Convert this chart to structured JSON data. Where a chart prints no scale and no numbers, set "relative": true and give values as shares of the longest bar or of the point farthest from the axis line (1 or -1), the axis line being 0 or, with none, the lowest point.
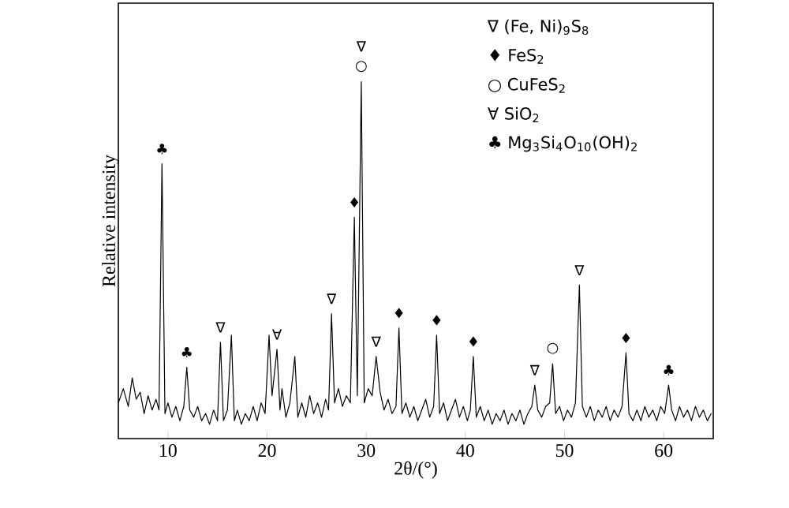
{
  "chart_data": {
    "type": "line",
    "relative": true,
    "xlabel": "2θ/(°)",
    "ylabel": "Relative intensity",
    "xlim": [
      5,
      65
    ],
    "xticks": [
      10,
      20,
      30,
      40,
      50,
      60
    ],
    "series": [
      {
        "color": "#000000",
        "x": [
          5.0,
          5.5,
          6.0,
          6.4,
          6.8,
          7.2,
          7.6,
          8.0,
          8.4,
          8.8,
          9.1,
          9.4,
          9.7,
          10.0,
          10.4,
          10.8,
          11.2,
          11.6,
          11.9,
          12.2,
          12.6,
          13.0,
          13.4,
          13.8,
          14.2,
          14.6,
          15.0,
          15.3,
          15.6,
          16.0,
          16.4,
          16.7,
          17.0,
          17.4,
          17.8,
          18.2,
          18.6,
          19.0,
          19.4,
          19.8,
          20.2,
          20.5,
          21.0,
          21.3,
          21.5,
          21.9,
          22.3,
          22.8,
          23.1,
          23.5,
          23.9,
          24.3,
          24.7,
          25.1,
          25.5,
          25.9,
          26.2,
          26.5,
          26.8,
          27.2,
          27.6,
          28.0,
          28.4,
          28.8,
          29.1,
          29.5,
          29.8,
          30.2,
          30.6,
          31.0,
          31.4,
          31.8,
          32.2,
          32.6,
          33.0,
          33.3,
          33.6,
          34.0,
          34.4,
          34.8,
          35.2,
          35.6,
          36.0,
          36.4,
          36.8,
          37.1,
          37.4,
          37.8,
          38.2,
          38.6,
          39.0,
          39.4,
          39.8,
          40.2,
          40.5,
          40.8,
          41.1,
          41.5,
          41.9,
          42.3,
          42.7,
          43.1,
          43.5,
          43.9,
          44.3,
          44.7,
          45.1,
          45.5,
          45.9,
          46.3,
          46.7,
          47.0,
          47.3,
          47.7,
          48.1,
          48.5,
          48.8,
          49.1,
          49.5,
          49.9,
          50.3,
          50.7,
          51.1,
          51.5,
          51.8,
          52.2,
          52.6,
          53.0,
          53.4,
          53.8,
          54.2,
          54.6,
          55.0,
          55.4,
          55.8,
          56.2,
          56.5,
          56.9,
          57.3,
          57.7,
          58.1,
          58.5,
          58.9,
          59.3,
          59.7,
          60.1,
          60.5,
          60.8,
          61.2,
          61.6,
          62.0,
          62.4,
          62.8,
          63.2,
          63.6,
          64.0,
          64.4,
          64.8
        ],
        "values": [
          0.1,
          0.14,
          0.09,
          0.17,
          0.11,
          0.13,
          0.07,
          0.12,
          0.08,
          0.11,
          0.08,
          0.77,
          0.07,
          0.1,
          0.06,
          0.09,
          0.05,
          0.09,
          0.2,
          0.08,
          0.06,
          0.09,
          0.05,
          0.07,
          0.04,
          0.08,
          0.05,
          0.27,
          0.05,
          0.08,
          0.29,
          0.05,
          0.08,
          0.04,
          0.07,
          0.05,
          0.09,
          0.05,
          0.1,
          0.07,
          0.29,
          0.12,
          0.25,
          0.08,
          0.14,
          0.06,
          0.1,
          0.23,
          0.06,
          0.1,
          0.06,
          0.12,
          0.07,
          0.1,
          0.06,
          0.11,
          0.08,
          0.35,
          0.1,
          0.14,
          0.09,
          0.12,
          0.1,
          0.62,
          0.12,
          1.0,
          0.1,
          0.14,
          0.12,
          0.23,
          0.13,
          0.08,
          0.11,
          0.07,
          0.09,
          0.31,
          0.07,
          0.1,
          0.06,
          0.09,
          0.05,
          0.08,
          0.11,
          0.06,
          0.09,
          0.29,
          0.07,
          0.1,
          0.05,
          0.08,
          0.11,
          0.06,
          0.09,
          0.05,
          0.08,
          0.23,
          0.06,
          0.09,
          0.05,
          0.08,
          0.04,
          0.07,
          0.05,
          0.08,
          0.04,
          0.07,
          0.05,
          0.08,
          0.04,
          0.07,
          0.09,
          0.15,
          0.08,
          0.06,
          0.09,
          0.1,
          0.21,
          0.07,
          0.09,
          0.05,
          0.08,
          0.06,
          0.1,
          0.43,
          0.09,
          0.06,
          0.09,
          0.05,
          0.08,
          0.06,
          0.09,
          0.05,
          0.08,
          0.06,
          0.09,
          0.24,
          0.07,
          0.05,
          0.08,
          0.05,
          0.09,
          0.06,
          0.08,
          0.05,
          0.09,
          0.07,
          0.15,
          0.08,
          0.05,
          0.09,
          0.06,
          0.08,
          0.05,
          0.09,
          0.06,
          0.08,
          0.05,
          0.07
        ]
      }
    ],
    "annotations": [
      "∇ (Fe, Ni)$_{9}$S$_{8}$",
      "♦ FeS$_{2}$",
      "○ CuFeS$_{2}$",
      "∀ SiO$_{2}$",
      "♣ Mg$_{3}$Si$_{4}$O$_{10}$(OH)$_{2}$",
      {
        "text": "♣",
        "x": 9.4,
        "y": 0.77
      },
      {
        "text": "♣",
        "x": 11.9,
        "y": 0.2
      },
      {
        "text": "∇",
        "x": 15.3,
        "y": 0.27
      },
      {
        "text": "∀",
        "x": 21.0,
        "y": 0.25
      },
      {
        "text": "∇",
        "x": 26.5,
        "y": 0.35
      },
      {
        "text": "♦",
        "x": 28.8,
        "y": 0.62
      },
      {
        "text": "○",
        "x": 29.5,
        "y": 1.0
      },
      {
        "text": "∇",
        "x": 29.5,
        "y": 1.0
      },
      {
        "text": "∇",
        "x": 31.0,
        "y": 0.23
      },
      {
        "text": "♦",
        "x": 33.3,
        "y": 0.31
      },
      {
        "text": "♦",
        "x": 37.1,
        "y": 0.29
      },
      {
        "text": "♦",
        "x": 40.8,
        "y": 0.23
      },
      {
        "text": "∇",
        "x": 47.0,
        "y": 0.15
      },
      {
        "text": "○",
        "x": 48.8,
        "y": 0.21
      },
      {
        "text": "∇",
        "x": 51.5,
        "y": 0.43
      },
      {
        "text": "♦",
        "x": 56.2,
        "y": 0.24
      },
      {
        "text": "♣",
        "x": 60.5,
        "y": 0.15
      }
    ]
  }
}
